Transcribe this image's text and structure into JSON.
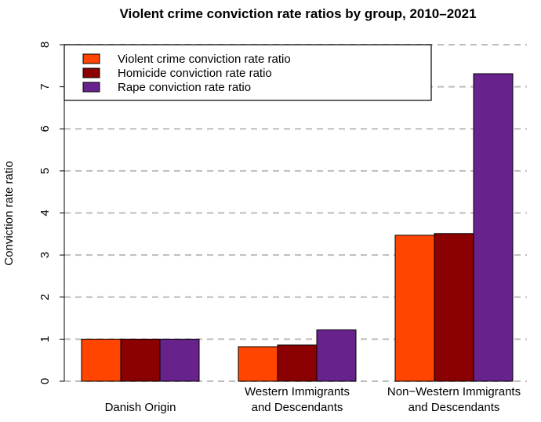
{
  "chart_data": {
    "type": "bar",
    "title": "Violent crime conviction rate ratios by group, 2010–2021",
    "xlabel": "",
    "ylabel": "Conviction rate ratio",
    "ylim": [
      0,
      8
    ],
    "yticks": [
      "0",
      "1",
      "2",
      "3",
      "4",
      "5",
      "6",
      "7",
      "8"
    ],
    "grid": true,
    "legend_position": "top-left",
    "categories": [
      [
        "Danish Origin"
      ],
      [
        "Western Immigrants",
        "and Descendants"
      ],
      [
        "Non−Western Immigrants",
        "and Descendants"
      ]
    ],
    "series": [
      {
        "name": "Violent crime conviction rate ratio",
        "color": "#ff4500",
        "values": [
          1.0,
          0.82,
          3.47
        ]
      },
      {
        "name": "Homicide conviction rate ratio",
        "color": "#8b0000",
        "values": [
          1.0,
          0.86,
          3.51
        ]
      },
      {
        "name": "Rape conviction rate ratio",
        "color": "#68228b",
        "values": [
          1.0,
          1.22,
          7.31
        ]
      }
    ]
  }
}
